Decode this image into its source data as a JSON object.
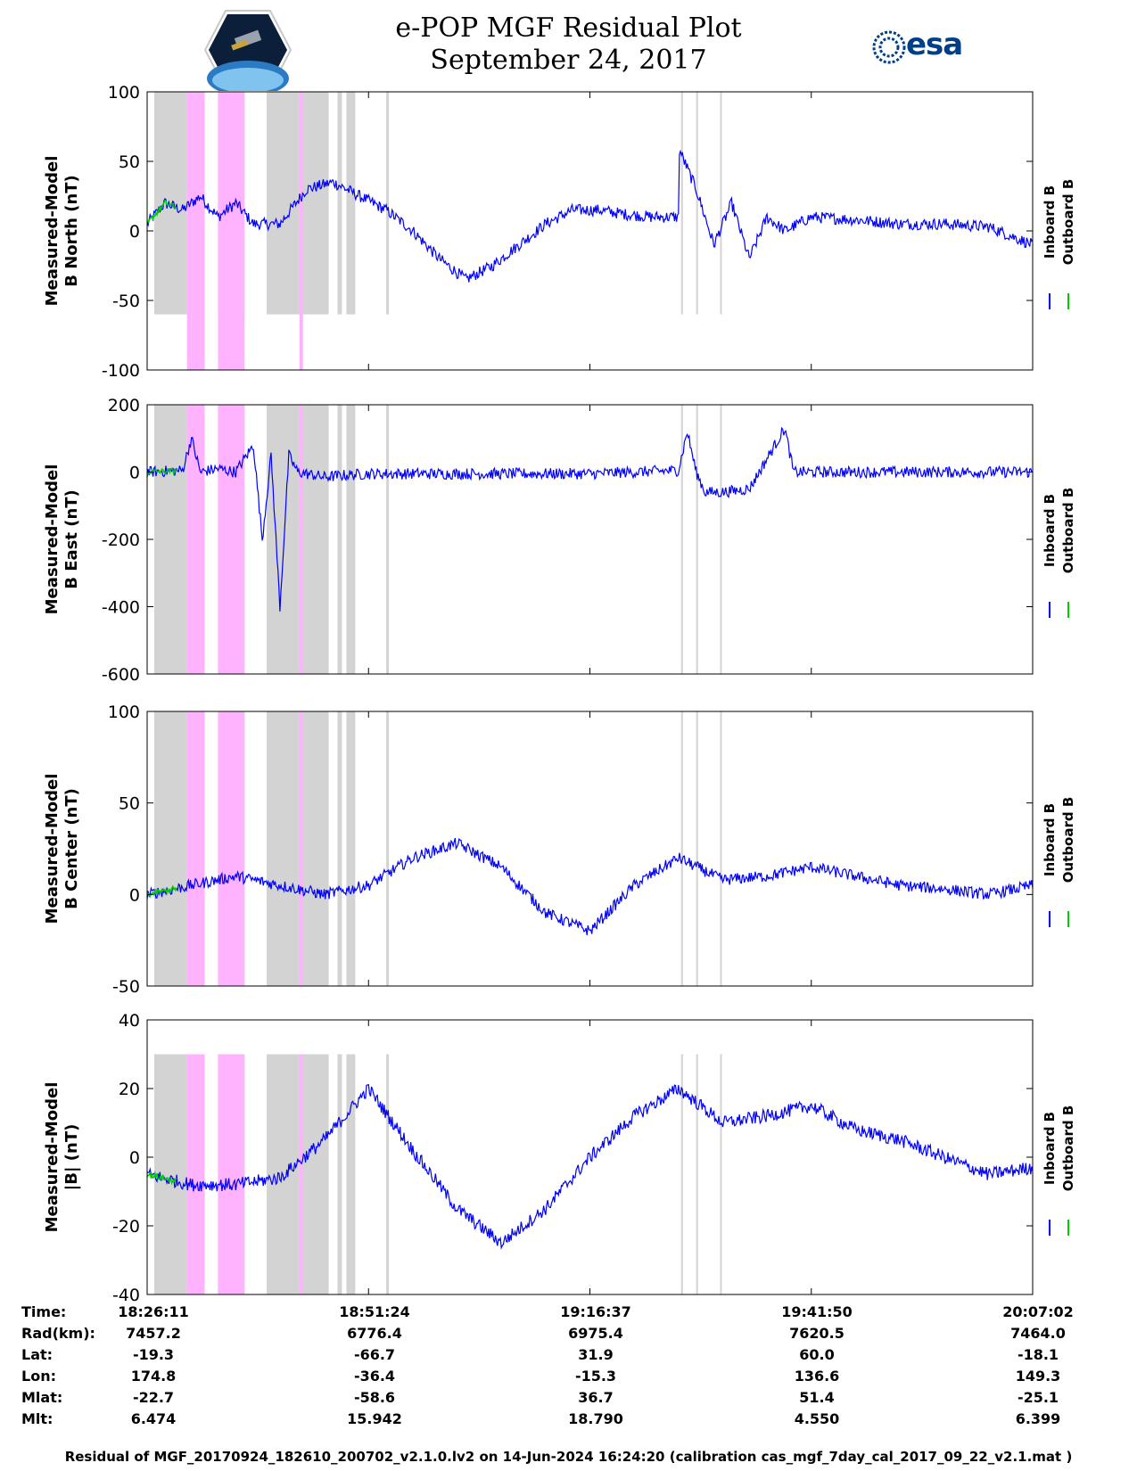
{
  "title": {
    "line1": "e-POP MGF Residual Plot",
    "line2": "September 24, 2017"
  },
  "logos": {
    "left_badge_icon": "cassiope-badge-icon",
    "right_logo_text": "esa",
    "esa_color": "#003f87"
  },
  "colors": {
    "inboard": "#0000ff",
    "outboard": "#00cc00",
    "gap_gray": "#d3d3d3",
    "gap_pink": "#ffb3ff"
  },
  "chart_data": [
    {
      "type": "line",
      "ylabel": [
        "Measured-Model",
        "B North (nT)"
      ],
      "ylim": [
        -100,
        100
      ],
      "yticks": [
        "100",
        "50",
        "0",
        "-50",
        "-100"
      ],
      "yticks_values": [
        100,
        50,
        0,
        -50,
        -100
      ],
      "legend": [
        "Inboard B",
        "Outboard B"
      ],
      "series": [
        {
          "name": "Inboard B",
          "color": "#0000ff",
          "x": [
            0,
            0.02,
            0.04,
            0.06,
            0.08,
            0.1,
            0.12,
            0.15,
            0.18,
            0.21,
            0.24,
            0.27,
            0.3,
            0.33,
            0.36,
            0.39,
            0.42,
            0.45,
            0.48,
            0.51,
            0.54,
            0.57,
            0.6,
            0.6,
            0.62,
            0.64,
            0.66,
            0.68,
            0.7,
            0.72,
            0.75,
            0.8,
            0.85,
            0.9,
            0.95,
            1.0
          ],
          "y": [
            5,
            20,
            15,
            25,
            10,
            20,
            5,
            5,
            30,
            35,
            25,
            15,
            0,
            -20,
            -35,
            -25,
            -10,
            5,
            15,
            15,
            12,
            10,
            10,
            60,
            30,
            -10,
            20,
            -20,
            10,
            0,
            10,
            8,
            5,
            5,
            3,
            -10
          ]
        }
      ],
      "gray_band_envelope": [
        -60,
        100
      ],
      "pink_band_envelope": [
        -100,
        100
      ]
    },
    {
      "type": "line",
      "ylabel": [
        "Measured-Model",
        "B East (nT)"
      ],
      "ylim": [
        -600,
        200
      ],
      "yticks": [
        "200",
        "0",
        "-200",
        "-400",
        "-600"
      ],
      "yticks_values": [
        200,
        0,
        -200,
        -400,
        -600
      ],
      "legend": [
        "Inboard B",
        "Outboard B"
      ],
      "series": [
        {
          "name": "Inboard B",
          "color": "#0000ff",
          "x": [
            0,
            0.04,
            0.05,
            0.06,
            0.08,
            0.1,
            0.12,
            0.13,
            0.14,
            0.15,
            0.16,
            0.17,
            0.2,
            0.22,
            0.25,
            0.3,
            0.35,
            0.4,
            0.45,
            0.5,
            0.55,
            0.6,
            0.61,
            0.62,
            0.63,
            0.65,
            0.68,
            0.7,
            0.72,
            0.73,
            0.75,
            0.8,
            0.9,
            1.0
          ],
          "y": [
            0,
            5,
            100,
            0,
            10,
            0,
            80,
            -200,
            50,
            -400,
            50,
            0,
            -15,
            -10,
            -5,
            -5,
            -5,
            -5,
            -5,
            -5,
            0,
            5,
            120,
            0,
            -60,
            -60,
            -50,
            40,
            130,
            0,
            0,
            0,
            0,
            0
          ]
        }
      ],
      "gray_band_envelope": [
        -600,
        200
      ],
      "pink_band_envelope": [
        -600,
        200
      ]
    },
    {
      "type": "line",
      "ylabel": [
        "Measured-Model",
        "B Center (nT)"
      ],
      "ylim": [
        -50,
        100
      ],
      "yticks": [
        "100",
        "50",
        "0",
        "-50"
      ],
      "yticks_values": [
        100,
        50,
        0,
        -50
      ],
      "legend": [
        "Inboard B",
        "Outboard B"
      ],
      "series": [
        {
          "name": "Inboard B",
          "color": "#0000ff",
          "x": [
            0,
            0.05,
            0.1,
            0.15,
            0.2,
            0.25,
            0.3,
            0.35,
            0.4,
            0.45,
            0.5,
            0.55,
            0.6,
            0.65,
            0.7,
            0.75,
            0.8,
            0.85,
            0.9,
            0.95,
            1.0
          ],
          "y": [
            0,
            5,
            10,
            5,
            0,
            5,
            20,
            28,
            15,
            -10,
            -20,
            5,
            20,
            8,
            10,
            15,
            10,
            5,
            3,
            0,
            5
          ]
        }
      ],
      "gray_band_envelope": [
        -50,
        100
      ],
      "pink_band_envelope": [
        -50,
        100
      ]
    },
    {
      "type": "line",
      "ylabel": [
        "Measured-Model",
        "|B| (nT)"
      ],
      "ylim": [
        -40,
        40
      ],
      "yticks": [
        "40",
        "20",
        "0",
        "-20",
        "-40"
      ],
      "yticks_values": [
        40,
        20,
        0,
        -20,
        -40
      ],
      "legend": [
        "Inboard B",
        "Outboard B"
      ],
      "series": [
        {
          "name": "Inboard B",
          "color": "#0000ff",
          "x": [
            0,
            0.05,
            0.1,
            0.15,
            0.2,
            0.25,
            0.3,
            0.35,
            0.4,
            0.45,
            0.5,
            0.55,
            0.6,
            0.65,
            0.7,
            0.75,
            0.8,
            0.85,
            0.9,
            0.95,
            1.0
          ],
          "y": [
            -5,
            -8,
            -8,
            -6,
            5,
            20,
            2,
            -15,
            -25,
            -15,
            0,
            12,
            20,
            10,
            12,
            15,
            8,
            5,
            0,
            -5,
            -3
          ]
        }
      ],
      "gray_band_envelope": [
        -40,
        30
      ],
      "pink_band_envelope": [
        -40,
        30
      ]
    }
  ],
  "x_ticks": [
    "18:26:11",
    "18:51:24",
    "19:16:37",
    "19:41:50",
    "20:07:02"
  ],
  "x_tick_fractions": [
    0,
    0.25,
    0.5,
    0.75,
    1.0
  ],
  "gap_bands": {
    "gray": [
      [
        0.008,
        0.045
      ],
      [
        0.08,
        0.11
      ],
      [
        0.135,
        0.172
      ],
      [
        0.172,
        0.205
      ],
      [
        0.215,
        0.22
      ],
      [
        0.225,
        0.23
      ],
      [
        0.23,
        0.235
      ],
      [
        0.27,
        0.273
      ],
      [
        0.603,
        0.605
      ],
      [
        0.62,
        0.622
      ],
      [
        0.647,
        0.649
      ]
    ],
    "pink": [
      [
        0.045,
        0.065
      ],
      [
        0.08,
        0.11
      ],
      [
        0.172,
        0.176
      ]
    ]
  },
  "orbit_table": {
    "labels": [
      "Time:",
      "Rad(km):",
      "Lat:",
      "Lon:",
      "Mlat:",
      "Mlt:"
    ],
    "columns": [
      [
        "18:26:11",
        "7457.2",
        "-19.3",
        "174.8",
        "-22.7",
        "6.474"
      ],
      [
        "18:51:24",
        "6776.4",
        "-66.7",
        "-36.4",
        "-58.6",
        "15.942"
      ],
      [
        "19:16:37",
        "6975.4",
        "31.9",
        "-15.3",
        "36.7",
        "18.790"
      ],
      [
        "19:41:50",
        "7620.5",
        "60.0",
        "136.6",
        "51.4",
        "4.550"
      ],
      [
        "20:07:02",
        "7464.0",
        "-18.1",
        "149.3",
        "-25.1",
        "6.399"
      ]
    ]
  },
  "footer": "Residual of MGF_20170924_182610_200702_v2.1.0.lv2 on 14-Jun-2024 16:24:20 (calibration cas_mgf_7day_cal_2017_09_22_v2.1.mat )"
}
